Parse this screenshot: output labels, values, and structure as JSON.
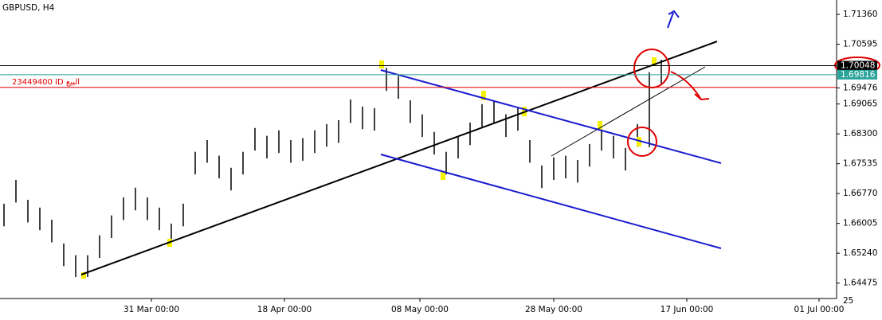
{
  "chart_data": {
    "type": "ohlc",
    "title": "GBPUSD, H4",
    "high": [
      1.6651,
      1.6712,
      1.6661,
      1.6641,
      1.661,
      1.6549,
      1.6519,
      1.6519,
      1.657,
      1.6621,
      1.6667,
      1.6692,
      1.6667,
      1.6641,
      1.66,
      1.6651,
      1.6784,
      1.6814,
      1.6774,
      1.6743,
      1.6784,
      1.6845,
      1.6825,
      1.6839,
      1.6814,
      1.6819,
      1.6839,
      1.6855,
      1.6865,
      1.6918,
      1.69,
      1.6896,
      1.6999,
      1.6978,
      1.6916,
      1.688,
      1.6835,
      1.6784,
      1.6825,
      1.6859,
      1.6906,
      1.6916,
      1.688,
      1.6896,
      1.6814,
      1.6749,
      1.677,
      1.6774,
      1.6763,
      1.6804,
      1.6845,
      1.6825,
      1.6794,
      1.6855,
      1.6988,
      1.702
    ],
    "low": [
      1.6593,
      1.6654,
      1.6603,
      1.6583,
      1.6552,
      1.6491,
      1.6463,
      1.6463,
      1.6512,
      1.6563,
      1.6609,
      1.6634,
      1.6609,
      1.6583,
      1.6542,
      1.6593,
      1.6726,
      1.6756,
      1.6716,
      1.6685,
      1.6726,
      1.6787,
      1.6767,
      1.6781,
      1.6756,
      1.6761,
      1.6781,
      1.6797,
      1.6807,
      1.6858,
      1.6842,
      1.6838,
      1.694,
      1.692,
      1.6858,
      1.6822,
      1.6777,
      1.6726,
      1.6767,
      1.6801,
      1.6848,
      1.6858,
      1.6822,
      1.6838,
      1.6756,
      1.6691,
      1.6712,
      1.6716,
      1.6705,
      1.6746,
      1.6787,
      1.6767,
      1.6736,
      1.6797,
      1.6796,
      1.6956
    ],
    "color": "#000000",
    "ylim": [
      1.6408,
      1.7173
    ],
    "yticks": [
      {
        "value": 1.7136,
        "label": "1.71360"
      },
      1.70595,
      1.69476,
      1.69065,
      {
        "value": 1.683,
        "label": "1.68300"
      },
      1.67535,
      {
        "value": 1.6677,
        "label": "1.66770"
      },
      1.66005,
      {
        "value": 1.6524,
        "label": "1.65240"
      },
      1.64475
    ],
    "xtick_labels": [
      "31 Mar 00:00",
      "18 Apr 00:00",
      "08 May 00:00",
      "28 May 00:00",
      "17 Jun 00:00",
      "01 Jul 00:00"
    ],
    "corner_label": "25",
    "price_lines": [
      {
        "value": 1.70048,
        "color": "#000000",
        "tag_color": "#000000"
      },
      {
        "value": 1.69816,
        "color": "#2aa39a",
        "tag_color": "#2aa39a"
      },
      {
        "value": 1.6949,
        "color": "#e00000",
        "label": "23449400 ID البيع"
      }
    ]
  }
}
